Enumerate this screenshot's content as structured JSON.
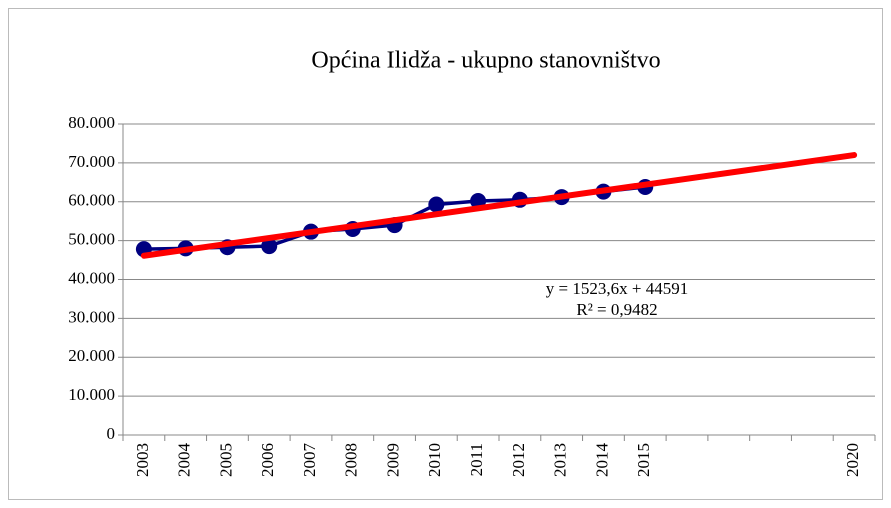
{
  "chart_data": {
    "type": "line",
    "title": "Općina Ilidža - ukupno stanovništvo",
    "categories": [
      "2003",
      "2004",
      "2005",
      "2006",
      "2007",
      "2008",
      "2009",
      "2010",
      "2011",
      "2012",
      "2013",
      "2014",
      "2015",
      null,
      null,
      null,
      null,
      "2020"
    ],
    "series": [
      {
        "name": "Ukupno stanovništvo",
        "color": "#000080",
        "values": [
          47800,
          48000,
          48300,
          48600,
          52300,
          53000,
          54000,
          59300,
          60200,
          60500,
          61200,
          62600,
          63800,
          null,
          null,
          null,
          null,
          null
        ]
      }
    ],
    "trendline": {
      "color": "#ff0000",
      "values": [
        46114.6,
        72015.8
      ]
    },
    "annotations": [
      "y = 1523,6x + 44591",
      "R² = 0,9482"
    ],
    "ylim": [
      0,
      80000
    ],
    "yticks": [
      0,
      {
        "value": 10000,
        "label": "10.000"
      },
      {
        "value": 20000,
        "label": "20.000"
      },
      {
        "value": 30000,
        "label": "30.000"
      },
      {
        "value": 40000,
        "label": "40.000"
      },
      {
        "value": 50000,
        "label": "50.000"
      },
      {
        "value": 60000,
        "label": "60.000"
      },
      {
        "value": 70000,
        "label": "70.000"
      },
      {
        "value": 80000,
        "label": "80.000"
      }
    ],
    "grid": true
  }
}
